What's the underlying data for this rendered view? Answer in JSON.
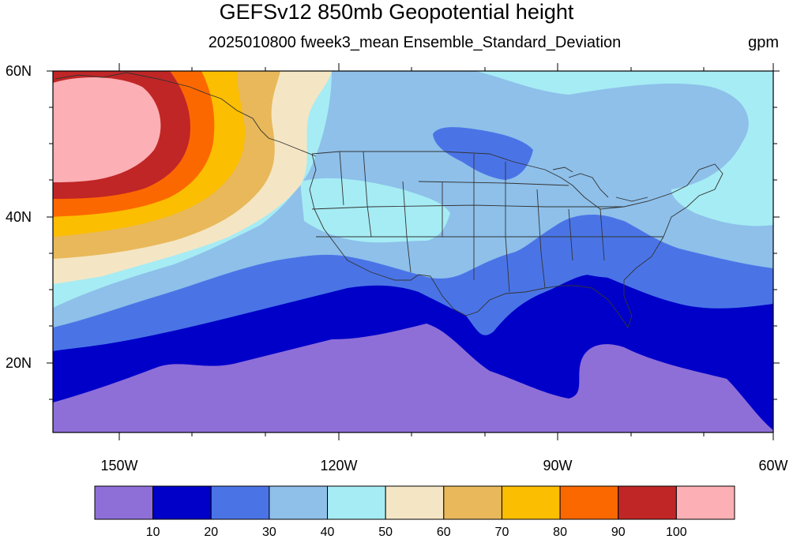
{
  "title": "GEFSv12 850mb Geopotential height",
  "subtitle": "2025010800 fweek3_mean Ensemble_Standard_Deviation",
  "units": "gpm",
  "lat_labels": [
    "60N",
    "40N",
    "20N"
  ],
  "lon_labels": [
    "150W",
    "120W",
    "90W",
    "60W"
  ],
  "colorbar": {
    "labels": [
      "10",
      "20",
      "30",
      "40",
      "50",
      "60",
      "70",
      "80",
      "90",
      "100"
    ],
    "colors": [
      "#8e6fd8",
      "#0000c8",
      "#4a74e6",
      "#8ec0ea",
      "#a6ecf4",
      "#f4e6c4",
      "#e8b85a",
      "#fcbe00",
      "#fc6800",
      "#c02626",
      "#fcafb4"
    ]
  },
  "map": {
    "lat_range": [
      10,
      60
    ],
    "lon_range": [
      -160,
      -60
    ],
    "field": "850mb geopotential height ensemble standard deviation"
  }
}
